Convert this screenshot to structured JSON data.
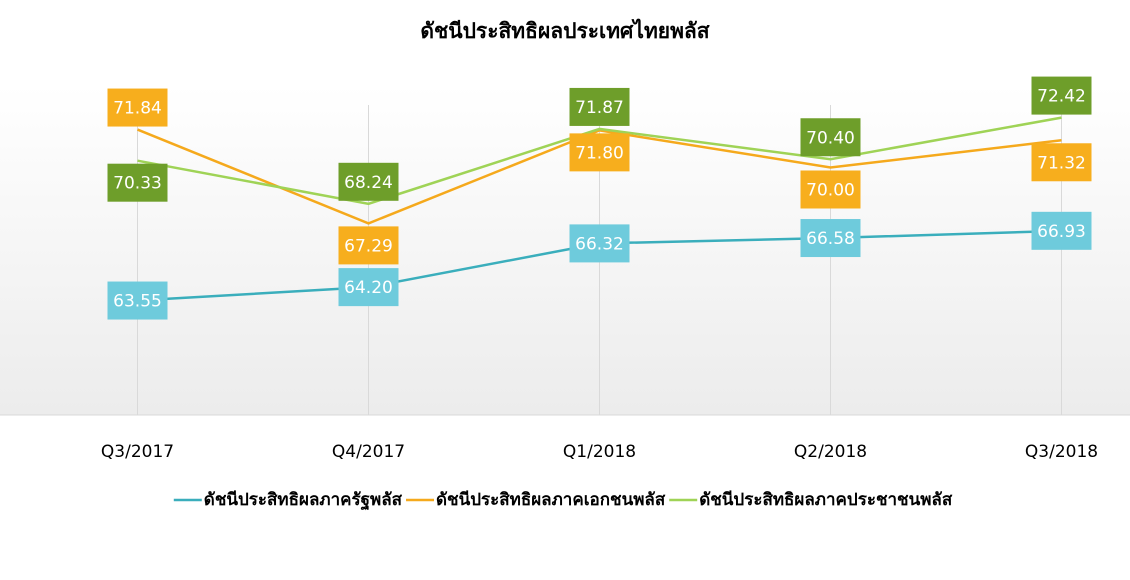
{
  "chart_data": {
    "type": "line",
    "title": "ดัชนีประสิทธิผลประเทศไทยพลัส",
    "categories": [
      "Q3/2017",
      "Q4/2017",
      "Q1/2018",
      "Q2/2018",
      "Q3/2018"
    ],
    "series": [
      {
        "name": "ดัชนีประสิทธิผลภาครัฐพลัส",
        "color": "#3aaebc",
        "label_color": "#6ecbdc",
        "values": [
          63.55,
          64.2,
          66.32,
          66.58,
          66.93
        ],
        "value_labels": [
          "63.55",
          "64.20",
          "66.32",
          "66.58",
          "66.93"
        ]
      },
      {
        "name": "ดัชนีประสิทธิผลภาคเอกชนพลัส",
        "color": "#f5a91c",
        "label_color": "#f7ae1d",
        "values": [
          71.84,
          67.29,
          71.8,
          70.0,
          71.32
        ],
        "value_labels": [
          "71.84",
          "67.29",
          "71.80",
          "70.00",
          "71.32"
        ]
      },
      {
        "name": "ดัชนีประสิทธิผลภาคประชาชนพลัส",
        "color": "#9fd356",
        "label_color": "#6e9e2a",
        "values": [
          70.33,
          68.24,
          71.87,
          70.4,
          72.42
        ],
        "value_labels": [
          "70.33",
          "68.24",
          "71.87",
          "70.40",
          "72.42"
        ]
      }
    ],
    "ylim": [
      58,
      74
    ],
    "grid": true,
    "legend": "bottom"
  }
}
